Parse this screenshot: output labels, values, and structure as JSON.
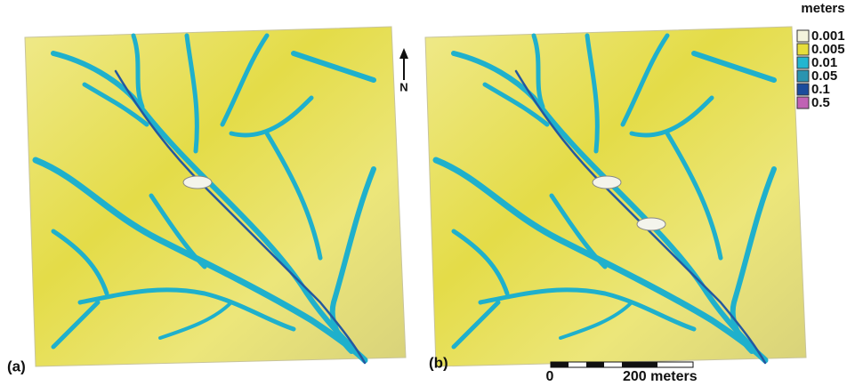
{
  "legend": {
    "title": "meters",
    "items": [
      {
        "label": "0.001",
        "color": "#f3f3dc"
      },
      {
        "label": "0.005",
        "color": "#e6de3c"
      },
      {
        "label": "0.01",
        "color": "#22b6d0"
      },
      {
        "label": "0.05",
        "color": "#2a94b0"
      },
      {
        "label": "0.1",
        "color": "#1b4c9c"
      },
      {
        "label": "0.5",
        "color": "#c062b4"
      }
    ]
  },
  "north": "N",
  "panels": [
    {
      "label": "(a)"
    },
    {
      "label": "(b)"
    }
  ],
  "scale_bar": {
    "labels": [
      "0",
      "200 meters"
    ]
  }
}
